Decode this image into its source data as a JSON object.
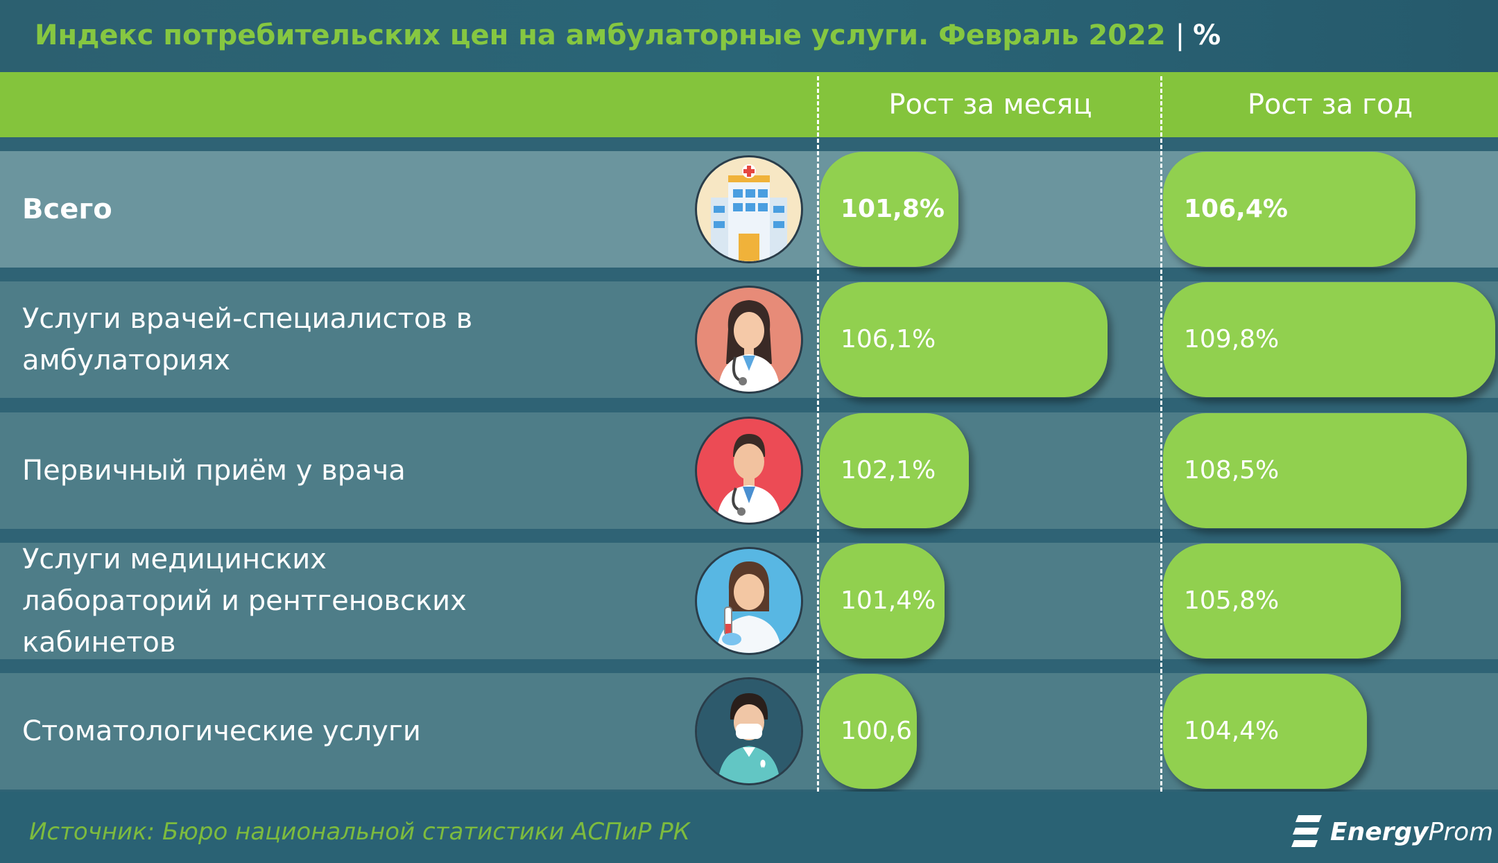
{
  "header": {
    "title": "Индекс потребительских цен на амбулаторные услуги. Февраль 2022",
    "separator": "|",
    "unit": "%"
  },
  "columns": {
    "month": "Рост за месяц",
    "year": "Рост за год"
  },
  "rows": [
    {
      "label": "Всего",
      "month": "101,8%",
      "year": "106,4%",
      "icon": "hospital-icon"
    },
    {
      "label": "Услуги врачей-специалистов в амбулаториях",
      "month": "106,1%",
      "year": "109,8%",
      "icon": "female-doctor-icon"
    },
    {
      "label": "Первичный приём у врача",
      "month": "102,1%",
      "year": "108,5%",
      "icon": "male-doctor-icon"
    },
    {
      "label": "Услуги медицинских лабораторий и рентгеновских кабинетов",
      "month": "101,4%",
      "year": "105,8%",
      "icon": "lab-technician-icon"
    },
    {
      "label": "Стоматологические услуги",
      "month": "100,6",
      "year": "104,4%",
      "icon": "dentist-icon"
    }
  ],
  "chart_data": {
    "type": "bar",
    "title": "Индекс потребительских цен на амбулаторные услуги. Февраль 2022",
    "unit": "%",
    "categories": [
      "Всего",
      "Услуги врачей-специалистов в амбулаториях",
      "Первичный приём у врача",
      "Услуги медицинских лабораторий и рентгеновских кабинетов",
      "Стоматологические услуги"
    ],
    "series": [
      {
        "name": "Рост за месяц",
        "values": [
          101.8,
          106.1,
          102.1,
          101.4,
          100.6
        ]
      },
      {
        "name": "Рост за год",
        "values": [
          106.4,
          109.8,
          108.5,
          105.8,
          104.4
        ]
      }
    ]
  },
  "footer": {
    "source": "Источник: Бюро национальной статистики АСПиР РК",
    "logo_strong": "Energy",
    "logo_rest": "Prom"
  },
  "colors": {
    "accent_green": "#84c43c",
    "bar_green": "#91d04f",
    "background": "#2f6375"
  }
}
